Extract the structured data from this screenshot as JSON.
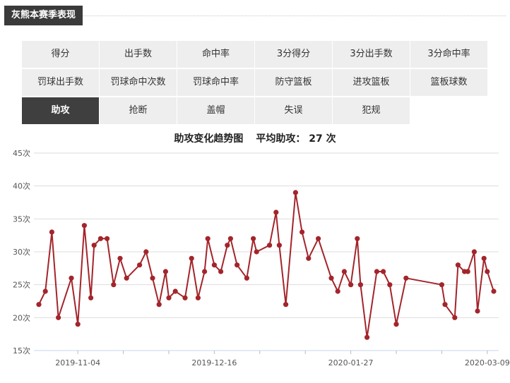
{
  "section": {
    "title": "灰熊本赛季表现"
  },
  "tabs": [
    {
      "label": "得分",
      "active": false
    },
    {
      "label": "出手数",
      "active": false
    },
    {
      "label": "命中率",
      "active": false
    },
    {
      "label": "3分得分",
      "active": false
    },
    {
      "label": "3分出手数",
      "active": false
    },
    {
      "label": "3分命中率",
      "active": false
    },
    {
      "label": "罚球出手数",
      "active": false
    },
    {
      "label": "罚球命中次数",
      "active": false
    },
    {
      "label": "罚球命中率",
      "active": false
    },
    {
      "label": "防守篮板",
      "active": false
    },
    {
      "label": "进攻篮板",
      "active": false
    },
    {
      "label": "篮板球数",
      "active": false
    },
    {
      "label": "助攻",
      "active": true
    },
    {
      "label": "抢断",
      "active": false
    },
    {
      "label": "盖帽",
      "active": false
    },
    {
      "label": "失误",
      "active": false
    },
    {
      "label": "犯规",
      "active": false
    }
  ],
  "chart_header": {
    "title": "助攻变化趋势图",
    "avg_label": "平均助攻：",
    "avg_value": "27",
    "avg_unit": "次"
  },
  "colors": {
    "line": "#a3252b",
    "grid": "#dddddd",
    "axis": "#c5d7ee",
    "active_tab": "#3f3f3f"
  },
  "chart_data": {
    "type": "line",
    "title": "助攻变化趋势图",
    "ylim": [
      15,
      45
    ],
    "y_ticks": [
      "15次",
      "20次",
      "25次",
      "30次",
      "35次",
      "40次",
      "45次"
    ],
    "y_tick_values": [
      15,
      20,
      25,
      30,
      35,
      40,
      45
    ],
    "x_axis": {
      "type": "date",
      "min": "2019-10-23",
      "max": "2020-03-11"
    },
    "x_ticks": [
      "2019-11-04",
      "2019-12-16",
      "2020-01-27",
      "2020-03-09"
    ],
    "grid": true,
    "series": [
      {
        "values": [
          [
            "2019-10-23",
            22
          ],
          [
            "2019-10-25",
            24
          ],
          [
            "2019-10-27",
            33
          ],
          [
            "2019-10-29",
            20
          ],
          [
            "2019-11-02",
            26
          ],
          [
            "2019-11-04",
            19
          ],
          [
            "2019-11-06",
            34
          ],
          [
            "2019-11-08",
            23
          ],
          [
            "2019-11-09",
            31
          ],
          [
            "2019-11-11",
            32
          ],
          [
            "2019-11-13",
            32
          ],
          [
            "2019-11-15",
            25
          ],
          [
            "2019-11-17",
            29
          ],
          [
            "2019-11-19",
            26
          ],
          [
            "2019-11-23",
            28
          ],
          [
            "2019-11-25",
            30
          ],
          [
            "2019-11-27",
            26
          ],
          [
            "2019-11-29",
            22
          ],
          [
            "2019-12-01",
            27
          ],
          [
            "2019-12-02",
            23
          ],
          [
            "2019-12-04",
            24
          ],
          [
            "2019-12-07",
            23
          ],
          [
            "2019-12-09",
            29
          ],
          [
            "2019-12-11",
            23
          ],
          [
            "2019-12-13",
            27
          ],
          [
            "2019-12-14",
            32
          ],
          [
            "2019-12-16",
            28
          ],
          [
            "2019-12-18",
            27
          ],
          [
            "2019-12-20",
            31
          ],
          [
            "2019-12-21",
            32
          ],
          [
            "2019-12-23",
            28
          ],
          [
            "2019-12-26",
            26
          ],
          [
            "2019-12-28",
            32
          ],
          [
            "2019-12-29",
            30
          ],
          [
            "2020-01-02",
            31
          ],
          [
            "2020-01-04",
            36
          ],
          [
            "2020-01-05",
            31
          ],
          [
            "2020-01-07",
            22
          ],
          [
            "2020-01-10",
            39
          ],
          [
            "2020-01-12",
            33
          ],
          [
            "2020-01-14",
            29
          ],
          [
            "2020-01-17",
            32
          ],
          [
            "2020-01-21",
            26
          ],
          [
            "2020-01-23",
            24
          ],
          [
            "2020-01-25",
            27
          ],
          [
            "2020-01-27",
            25
          ],
          [
            "2020-01-29",
            32
          ],
          [
            "2020-01-30",
            25
          ],
          [
            "2020-02-01",
            17
          ],
          [
            "2020-02-04",
            27
          ],
          [
            "2020-02-06",
            27
          ],
          [
            "2020-02-08",
            25
          ],
          [
            "2020-02-10",
            19
          ],
          [
            "2020-02-13",
            26
          ],
          [
            "2020-02-24",
            25
          ],
          [
            "2020-02-25",
            22
          ],
          [
            "2020-02-28",
            20
          ],
          [
            "2020-02-29",
            28
          ],
          [
            "2020-03-02",
            27
          ],
          [
            "2020-03-03",
            27
          ],
          [
            "2020-03-05",
            30
          ],
          [
            "2020-03-06",
            21
          ],
          [
            "2020-03-08",
            29
          ],
          [
            "2020-03-09",
            27
          ],
          [
            "2020-03-11",
            24
          ]
        ]
      }
    ]
  }
}
